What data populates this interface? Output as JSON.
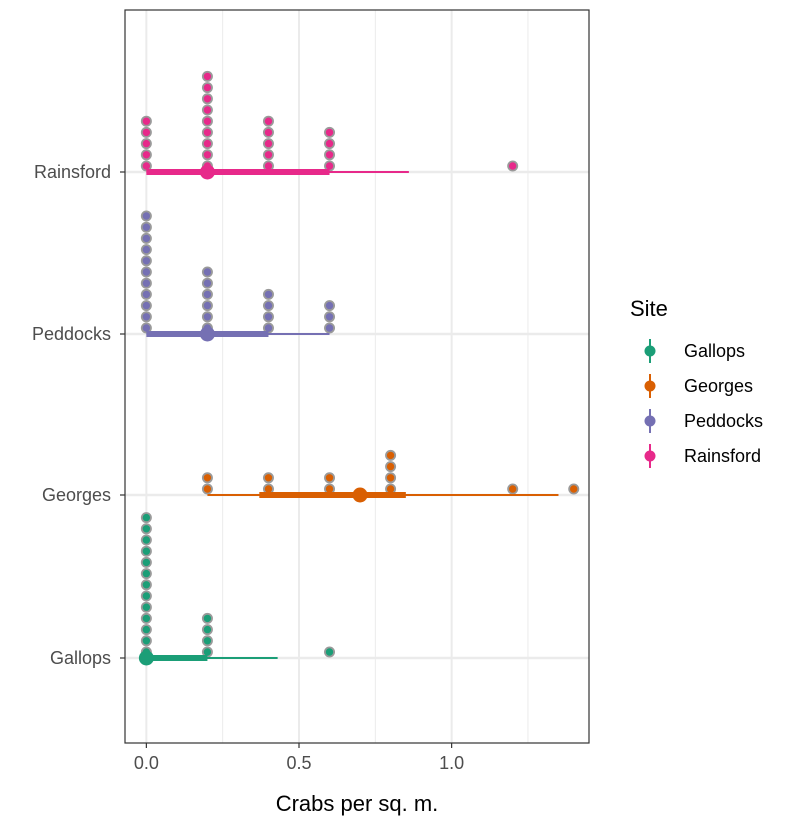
{
  "chart_data": {
    "type": "scatter",
    "xlabel": "Crabs per sq. m.",
    "ylabel": "",
    "xlim": [
      -0.07,
      1.45
    ],
    "x_ticks": [
      0.0,
      0.5,
      1.0
    ],
    "x_tick_labels": [
      "0.0",
      "0.5",
      "1.0"
    ],
    "categories": [
      "Gallops",
      "Georges",
      "Peddocks",
      "Rainsford"
    ],
    "grid": true,
    "legend_title": "Site",
    "legend_position": "right",
    "series": [
      {
        "name": "Gallops",
        "color": "#1b9e77",
        "point": 0.0,
        "interval_inner": [
          0.0,
          0.2
        ],
        "interval_outer": [
          0.0,
          0.43
        ],
        "dots": [
          {
            "x": 0.0,
            "n": 13
          },
          {
            "x": 0.2,
            "n": 4
          },
          {
            "x": 0.6,
            "n": 1
          }
        ]
      },
      {
        "name": "Georges",
        "color": "#d95f02",
        "point": 0.7,
        "interval_inner": [
          0.37,
          0.85
        ],
        "interval_outer": [
          0.2,
          1.35
        ],
        "dots": [
          {
            "x": 0.2,
            "n": 2
          },
          {
            "x": 0.4,
            "n": 2
          },
          {
            "x": 0.6,
            "n": 2
          },
          {
            "x": 0.8,
            "n": 4
          },
          {
            "x": 1.2,
            "n": 1
          },
          {
            "x": 1.4,
            "n": 1
          }
        ]
      },
      {
        "name": "Peddocks",
        "color": "#7570b3",
        "point": 0.2,
        "interval_inner": [
          0.0,
          0.4
        ],
        "interval_outer": [
          0.0,
          0.6
        ],
        "dots": [
          {
            "x": 0.0,
            "n": 11
          },
          {
            "x": 0.2,
            "n": 6
          },
          {
            "x": 0.4,
            "n": 4
          },
          {
            "x": 0.6,
            "n": 3
          }
        ]
      },
      {
        "name": "Rainsford",
        "color": "#e7298a",
        "point": 0.2,
        "interval_inner": [
          0.0,
          0.6
        ],
        "interval_outer": [
          0.0,
          0.86
        ],
        "dots": [
          {
            "x": 0.0,
            "n": 5
          },
          {
            "x": 0.2,
            "n": 9
          },
          {
            "x": 0.4,
            "n": 5
          },
          {
            "x": 0.6,
            "n": 4
          },
          {
            "x": 1.2,
            "n": 1
          }
        ]
      }
    ]
  },
  "colors": {
    "panel_border": "#333333",
    "grid": "#ebebeb",
    "dot_stroke": "#9a9a9a"
  }
}
